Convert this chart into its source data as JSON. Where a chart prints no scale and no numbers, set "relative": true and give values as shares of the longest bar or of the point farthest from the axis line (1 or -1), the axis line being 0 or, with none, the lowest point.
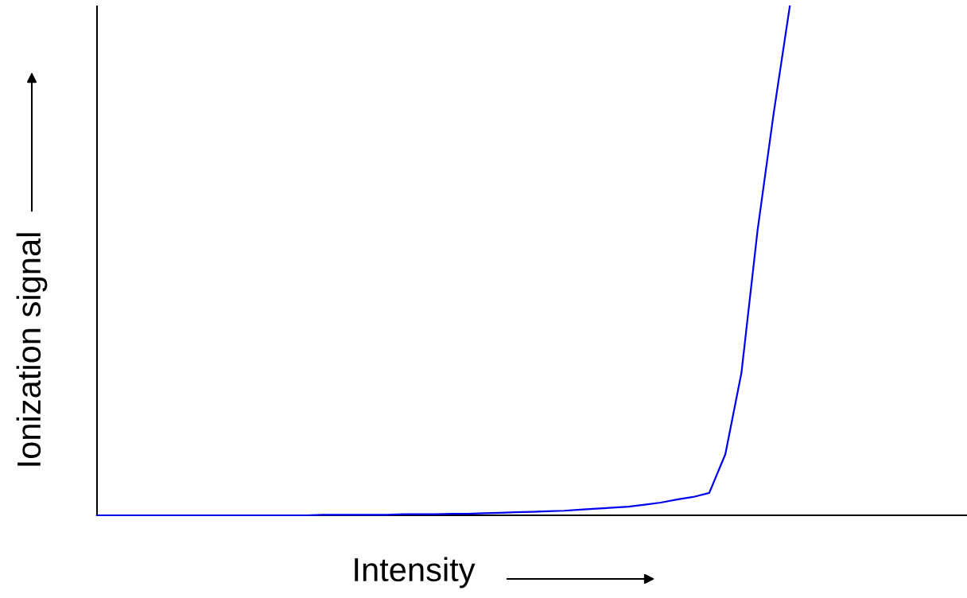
{
  "chart_data": {
    "type": "line",
    "relative": true,
    "xlabel": "Intensity",
    "ylabel": "Ionization signal",
    "categories": [
      null,
      null,
      null,
      null,
      null,
      null,
      null,
      null,
      null,
      null,
      null,
      null,
      null,
      null,
      null,
      null,
      null,
      null,
      null,
      null,
      null,
      null,
      null,
      null,
      null,
      null,
      null,
      null,
      null,
      null,
      null,
      null,
      null,
      null,
      null,
      null,
      null,
      null,
      null,
      null,
      null,
      null,
      null,
      null,
      null,
      null,
      null,
      null,
      null,
      null,
      null,
      null,
      null,
      null,
      null
    ],
    "series": [
      {
        "color": "#0000ee",
        "values": [
          0,
          0,
          0,
          0,
          0,
          0,
          0,
          0,
          0,
          0,
          0,
          0,
          0,
          0,
          0.001,
          0.001,
          0.001,
          0.001,
          0.001,
          0.002,
          0.002,
          0.002,
          0.003,
          0.003,
          0.004,
          0.005,
          0.006,
          0.007,
          0.008,
          0.009,
          0.011,
          0.013,
          0.015,
          0.017,
          0.021,
          0.025,
          0.031,
          0.036,
          0.044,
          0.12,
          0.28,
          0.56,
          0.79,
          1,
          null,
          null,
          null,
          null,
          null,
          null,
          null,
          null,
          null,
          null,
          null
        ]
      }
    ],
    "legend": false,
    "grid": false,
    "marker": "none",
    "line_style": "solid"
  }
}
